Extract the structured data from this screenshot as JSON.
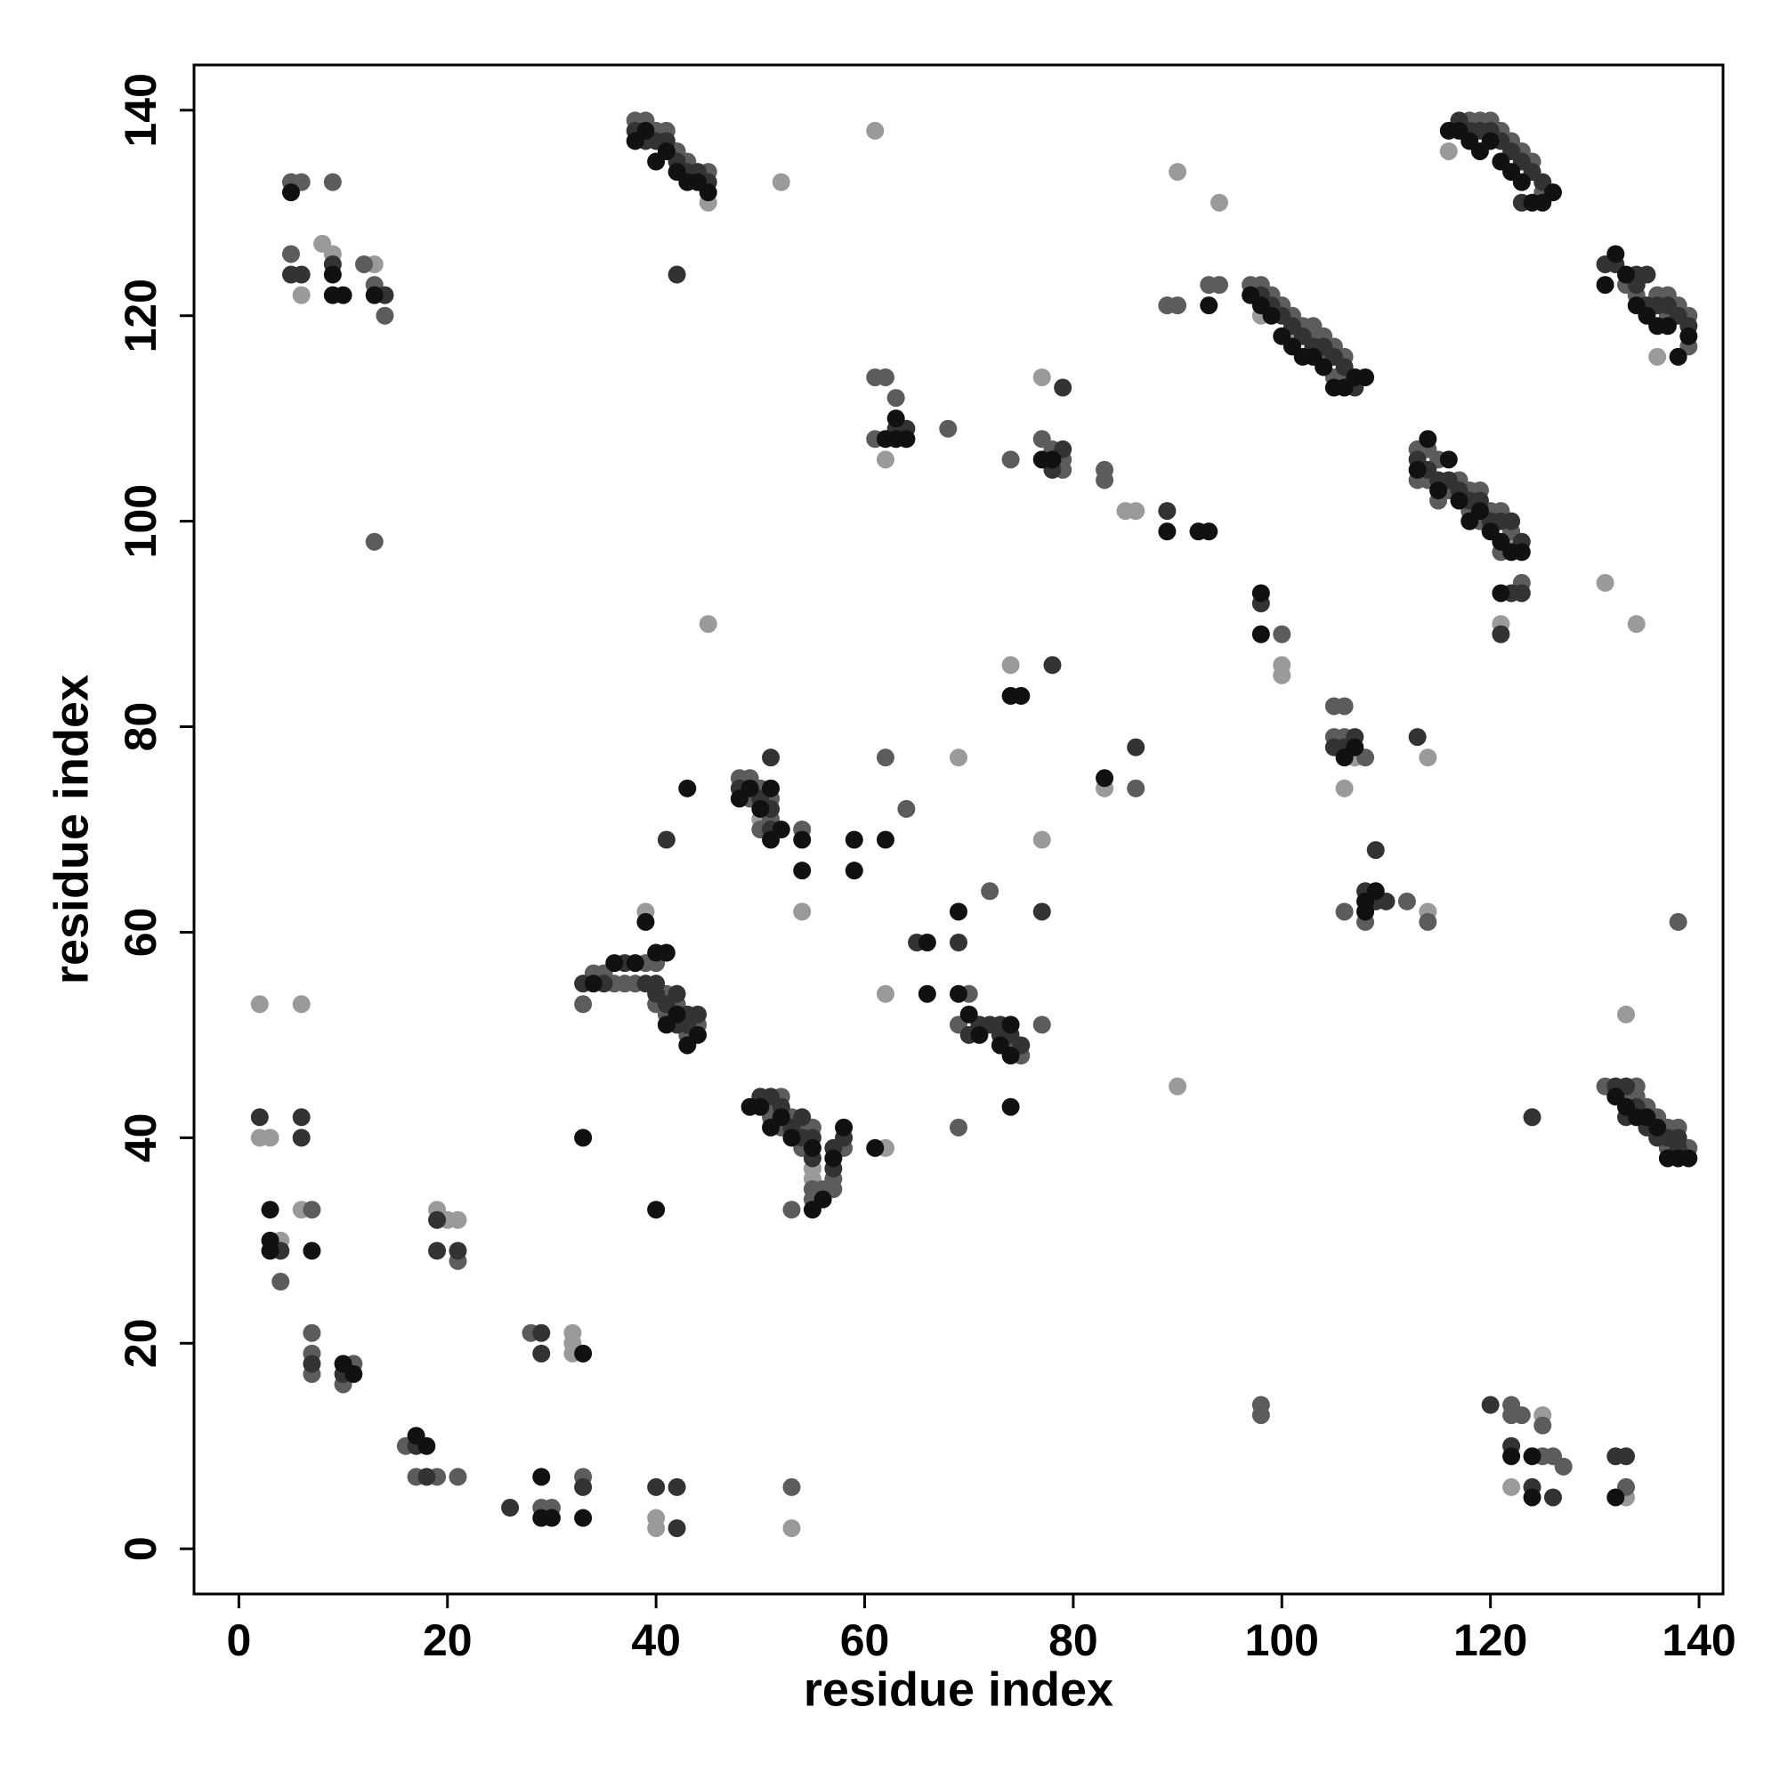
{
  "chart_data": {
    "type": "scatter",
    "xlabel": "residue index",
    "ylabel": "residue index",
    "xlim": [
      -4.3,
      142.3
    ],
    "ylim": [
      -4.4,
      144.4
    ],
    "xticks": [
      0,
      20,
      40,
      60,
      80,
      100,
      120,
      140
    ],
    "yticks": [
      0,
      20,
      40,
      60,
      80,
      100,
      120,
      140
    ],
    "series": [
      {
        "color": "#9a9a9a",
        "x": [
          45,
          45,
          52,
          61,
          6,
          9,
          8,
          13,
          116,
          136,
          90,
          94,
          131,
          134,
          121,
          122,
          101,
          98,
          77,
          62,
          74,
          69,
          83,
          77,
          114,
          106,
          100,
          100,
          107,
          114,
          54,
          62,
          39,
          90,
          133,
          85,
          86,
          55,
          55,
          50,
          62,
          2,
          6,
          2,
          3,
          4,
          6,
          20,
          21,
          32,
          32,
          32,
          40,
          40,
          53,
          122,
          125,
          133,
          19
        ],
        "values": [
          131,
          90,
          133,
          138,
          122,
          126,
          127,
          125,
          136,
          116,
          134,
          131,
          94,
          90,
          90,
          98,
          118,
          120,
          114,
          106,
          86,
          77,
          74,
          69,
          77,
          74,
          86,
          85,
          77,
          62,
          62,
          54,
          62,
          45,
          52,
          101,
          101,
          37,
          36,
          71,
          39,
          53,
          53,
          40,
          40,
          30,
          33,
          32,
          32,
          21,
          20,
          19,
          3,
          2,
          2,
          6,
          13,
          5,
          33
        ]
      },
      {
        "color": "#5c5c5c",
        "x": [
          38,
          39,
          40,
          41,
          42,
          43,
          45,
          5,
          6,
          9,
          5,
          12,
          13,
          14,
          13,
          118,
          119,
          120,
          121,
          122,
          123,
          124,
          125,
          133,
          134,
          136,
          137,
          137,
          138,
          139,
          139,
          97,
          98,
          99,
          100,
          101,
          102,
          103,
          103,
          104,
          104,
          105,
          106,
          105,
          106,
          94,
          113,
          113,
          114,
          114,
          115,
          115,
          116,
          117,
          118,
          118,
          119,
          119,
          120,
          121,
          121,
          122,
          123,
          61,
          62,
          63,
          61,
          68,
          77,
          78,
          79,
          79,
          83,
          83,
          74,
          89,
          90,
          93,
          100,
          105,
          106,
          105,
          106,
          108,
          108,
          106,
          112,
          114,
          138,
          64,
          62,
          72,
          86,
          48,
          49,
          49,
          50,
          50,
          51,
          51,
          54,
          33,
          34,
          35,
          36,
          37,
          38,
          39,
          40,
          40,
          41,
          41,
          42,
          43,
          44,
          69,
          70,
          74,
          75,
          77,
          69,
          51,
          51,
          52,
          52,
          53,
          54,
          54,
          55,
          55,
          55,
          56,
          57,
          57,
          58,
          53,
          131,
          133,
          134,
          134,
          135,
          136,
          137,
          137,
          138,
          139,
          7,
          7,
          7,
          7,
          4,
          10,
          16,
          17,
          19,
          21,
          21,
          28,
          29,
          30,
          33,
          53,
          98,
          98,
          122,
          122,
          123,
          125,
          125,
          126,
          127,
          133,
          11
        ],
        "values": [
          139,
          139,
          138,
          138,
          136,
          135,
          134,
          133,
          133,
          133,
          126,
          125,
          123,
          120,
          98,
          139,
          139,
          139,
          138,
          137,
          136,
          135,
          132,
          123,
          122,
          122,
          122,
          120,
          121,
          120,
          117,
          123,
          123,
          122,
          121,
          120,
          119,
          119,
          118,
          118,
          116,
          117,
          116,
          114,
          114,
          123,
          107,
          104,
          107,
          104,
          106,
          102,
          103,
          104,
          103,
          101,
          103,
          100,
          101,
          101,
          97,
          99,
          94,
          114,
          114,
          112,
          108,
          109,
          108,
          107,
          106,
          105,
          105,
          104,
          106,
          121,
          121,
          123,
          89,
          82,
          82,
          79,
          79,
          77,
          61,
          62,
          63,
          61,
          61,
          72,
          77,
          64,
          74,
          75,
          75,
          73,
          74,
          70,
          73,
          71,
          70,
          53,
          56,
          56,
          55,
          55,
          55,
          57,
          57,
          53,
          52,
          54,
          53,
          50,
          51,
          51,
          54,
          49,
          48,
          51,
          41,
          43,
          42,
          44,
          41,
          42,
          41,
          39,
          41,
          35,
          34,
          35,
          36,
          35,
          39,
          33,
          45,
          44,
          45,
          44,
          43,
          42,
          41,
          39,
          41,
          39,
          33,
          21,
          19,
          17,
          26,
          16,
          10,
          7,
          7,
          7,
          28,
          21,
          4,
          4,
          7,
          6,
          14,
          13,
          14,
          13,
          13,
          12,
          9,
          9,
          8,
          6,
          18
        ]
      },
      {
        "color": "#333333",
        "x": [
          38,
          39,
          40,
          41,
          42,
          43,
          44,
          45,
          42,
          5,
          6,
          9,
          14,
          117,
          118,
          119,
          120,
          121,
          122,
          123,
          124,
          125,
          123,
          131,
          132,
          134,
          134,
          135,
          135,
          136,
          137,
          138,
          139,
          98,
          99,
          100,
          101,
          102,
          103,
          104,
          105,
          106,
          107,
          113,
          114,
          115,
          116,
          117,
          118,
          119,
          120,
          121,
          122,
          123,
          122,
          123,
          121,
          64,
          63,
          79,
          79,
          78,
          89,
          98,
          105,
          106,
          107,
          113,
          108,
          109,
          110,
          109,
          78,
          86,
          51,
          50,
          51,
          51,
          48,
          41,
          33,
          35,
          37,
          39,
          40,
          40,
          41,
          42,
          42,
          43,
          43,
          44,
          65,
          69,
          70,
          71,
          72,
          73,
          73,
          74,
          75,
          77,
          50,
          51,
          52,
          53,
          54,
          54,
          55,
          57,
          57,
          58,
          55,
          132,
          133,
          133,
          134,
          135,
          136,
          137,
          138,
          138,
          124,
          2,
          6,
          4,
          6,
          7,
          10,
          17,
          18,
          19,
          19,
          21,
          26,
          29,
          29,
          33,
          40,
          42,
          42,
          120,
          122,
          124,
          126,
          133,
          132
        ],
        "values": [
          138,
          137,
          137,
          137,
          135,
          134,
          134,
          133,
          124,
          124,
          124,
          125,
          122,
          139,
          138,
          138,
          138,
          137,
          136,
          135,
          134,
          133,
          131,
          125,
          125,
          124,
          123,
          124,
          121,
          121,
          121,
          120,
          119,
          122,
          121,
          120,
          119,
          118,
          117,
          117,
          116,
          115,
          113,
          106,
          105,
          104,
          104,
          103,
          102,
          102,
          100,
          100,
          100,
          98,
          93,
          93,
          89,
          109,
          109,
          113,
          107,
          105,
          101,
          92,
          78,
          78,
          79,
          79,
          64,
          63,
          63,
          68,
          86,
          78,
          77,
          73,
          72,
          70,
          74,
          69,
          55,
          55,
          57,
          55,
          55,
          54,
          53,
          54,
          51,
          52,
          51,
          52,
          59,
          59,
          50,
          51,
          51,
          51,
          50,
          50,
          49,
          62,
          44,
          44,
          43,
          41,
          42,
          40,
          38,
          37,
          39,
          40,
          40,
          45,
          45,
          42,
          43,
          41,
          40,
          40,
          39,
          40,
          42,
          42,
          42,
          29,
          40,
          18,
          17,
          10,
          7,
          29,
          32,
          29,
          4,
          21,
          19,
          6,
          6,
          6,
          2,
          14,
          10,
          6,
          5,
          9,
          9
        ]
      },
      {
        "color": "#111111",
        "x": [
          38,
          39,
          40,
          41,
          42,
          43,
          44,
          45,
          5,
          9,
          9,
          10,
          13,
          116,
          117,
          118,
          119,
          120,
          121,
          122,
          123,
          124,
          125,
          126,
          131,
          132,
          133,
          134,
          135,
          136,
          137,
          138,
          139,
          97,
          98,
          99,
          100,
          101,
          102,
          103,
          104,
          105,
          106,
          107,
          108,
          93,
          113,
          114,
          115,
          116,
          117,
          118,
          119,
          120,
          121,
          122,
          123,
          121,
          63,
          63,
          64,
          62,
          77,
          78,
          89,
          92,
          93,
          98,
          98,
          106,
          107,
          108,
          109,
          108,
          74,
          75,
          83,
          48,
          49,
          50,
          51,
          51,
          52,
          54,
          54,
          43,
          59,
          59,
          62,
          39,
          40,
          41,
          41,
          42,
          43,
          44,
          34,
          36,
          38,
          66,
          66,
          69,
          69,
          70,
          71,
          73,
          74,
          74,
          74,
          49,
          50,
          51,
          52,
          53,
          55,
          55,
          56,
          57,
          58,
          61,
          33,
          40,
          132,
          133,
          134,
          135,
          136,
          137,
          138,
          139,
          3,
          3,
          3,
          7,
          10,
          11,
          17,
          18,
          29,
          29,
          30,
          33,
          33,
          124,
          124,
          132,
          122
        ],
        "values": [
          137,
          138,
          135,
          136,
          134,
          133,
          133,
          132,
          132,
          124,
          122,
          122,
          122,
          138,
          138,
          137,
          136,
          137,
          135,
          134,
          133,
          131,
          131,
          132,
          123,
          126,
          124,
          121,
          120,
          119,
          119,
          116,
          118,
          122,
          121,
          120,
          118,
          117,
          116,
          116,
          115,
          113,
          113,
          114,
          114,
          121,
          105,
          108,
          103,
          106,
          102,
          100,
          101,
          99,
          98,
          97,
          97,
          93,
          110,
          108,
          108,
          108,
          106,
          106,
          99,
          99,
          99,
          93,
          89,
          77,
          78,
          63,
          64,
          62,
          83,
          83,
          75,
          73,
          74,
          72,
          74,
          69,
          70,
          69,
          66,
          74,
          69,
          66,
          69,
          61,
          58,
          58,
          51,
          52,
          49,
          50,
          55,
          57,
          57,
          59,
          54,
          62,
          54,
          52,
          50,
          49,
          51,
          48,
          43,
          43,
          43,
          41,
          42,
          40,
          39,
          33,
          34,
          38,
          41,
          39,
          40,
          33,
          44,
          43,
          42,
          42,
          41,
          38,
          38,
          38,
          33,
          30,
          29,
          29,
          18,
          17,
          11,
          10,
          7,
          3,
          3,
          3,
          19,
          9,
          5,
          5,
          9
        ]
      }
    ]
  }
}
